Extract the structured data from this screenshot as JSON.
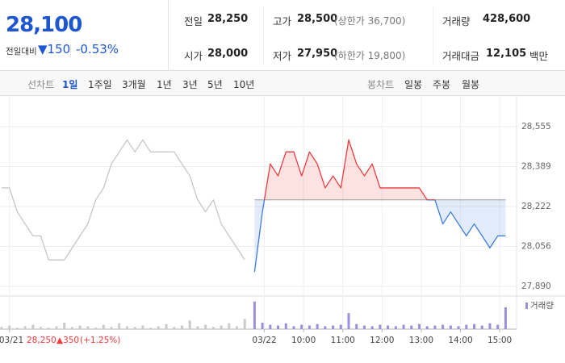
{
  "quote": {
    "price": "28,100",
    "change_label": "전일대비",
    "change": "▼150",
    "change_pct": "-0.53%"
  },
  "stats": [
    {
      "label": "전일"
    },
    {
      "label": "고가",
      "value": "28,500",
      "note": "(상한가 36,700)"
    },
    {
      "label": "거래량",
      "value": "428,600"
    },
    {
      "label": "시가",
      "value": "28,000"
    },
    {
      "label": "저가",
      "value": "27,950",
      "note": "(하한가 19,800)"
    },
    {
      "label": "거래대금",
      "value": "12,105",
      "unit": "백만"
    }
  ],
  "tabs": {
    "line_label": "선차트",
    "line": [
      "1일",
      "1주일",
      "3개월",
      "1년",
      "3년",
      "5년",
      "10년"
    ],
    "candle_label": "봉차트",
    "candle": [
      "일봉",
      "주봉",
      "월봉"
    ]
  },
  "chart_data": {
    "type": "line",
    "grid": true,
    "xlim": [
      2.26,
      15.43
    ],
    "xticks": [
      {
        "value": 2.5,
        "label": "03/21"
      },
      {
        "value": 9,
        "label": "03/22"
      },
      {
        "value": 10,
        "label": "10:00"
      },
      {
        "value": 11,
        "label": "11:00"
      },
      {
        "value": 12,
        "label": "12:00"
      },
      {
        "value": 13,
        "label": "13:00"
      },
      {
        "value": 14,
        "label": "14:00"
      },
      {
        "value": 15,
        "label": "15:00"
      }
    ],
    "ylim": [
      27856,
      28646
    ],
    "yticks": [
      {
        "value": 28555,
        "label": "28,555"
      },
      {
        "value": 28388.75,
        "label": "28,389"
      },
      {
        "value": 28222.5,
        "label": "28,222"
      },
      {
        "value": 28056.25,
        "label": "28,056"
      },
      {
        "value": 27890,
        "label": "27,890"
      }
    ],
    "y2lim": [
      0,
      40000
    ],
    "prev_close": {
      "value": 28250,
      "label": "28,250"
    },
    "up_color": "#f0393d",
    "down_color": "#3b7be0",
    "annotation": {
      "change": "▲350",
      "change_pct": "(+1.25%)"
    },
    "series": [
      {
        "color": "#c6c6c6",
        "x": [
          2.3,
          2.5,
          2.7,
          2.9,
          3.1,
          3.3,
          3.5,
          3.7,
          3.9,
          4.1,
          4.3,
          4.5,
          4.7,
          4.9,
          5.1,
          5.3,
          5.5,
          5.7,
          5.9,
          6.1,
          6.3,
          6.5,
          6.7,
          6.9,
          7.1,
          7.3,
          7.5,
          7.7,
          7.9,
          8.1,
          8.3,
          8.5
        ],
        "values": [
          28300,
          28300,
          28200,
          28150,
          28100,
          28100,
          28000,
          28000,
          28000,
          28050,
          28100,
          28150,
          28250,
          28300,
          28400,
          28450,
          28500,
          28450,
          28500,
          28450,
          28450,
          28450,
          28450,
          28400,
          28350,
          28250,
          28200,
          28250,
          28150,
          28100,
          28050,
          28000
        ]
      },
      {
        "color": "#f0393d",
        "x": [
          8.75,
          8.95,
          9.15,
          9.35,
          9.55,
          9.75,
          9.95,
          10.15,
          10.35,
          10.55,
          10.75,
          10.95,
          11.15,
          11.35,
          11.55,
          11.75,
          11.95,
          12.15,
          12.35,
          12.55,
          12.75,
          12.95,
          13.15,
          13.35,
          13.55,
          13.75,
          13.95,
          14.15,
          14.35,
          14.55,
          14.75,
          14.95,
          15.15
        ],
        "values": [
          27950,
          28200,
          28400,
          28350,
          28450,
          28450,
          28350,
          28450,
          28400,
          28300,
          28350,
          28300,
          28500,
          28400,
          28350,
          28400,
          28300,
          28300,
          28300,
          28300,
          28300,
          28300,
          28250,
          28250,
          28150,
          28200,
          28150,
          28100,
          28150,
          28100,
          28050,
          28100,
          28100
        ]
      },
      {
        "type": "bar",
        "axis": "y2",
        "color": "#cacaca",
        "x": [
          2.3,
          2.5,
          2.7,
          2.9,
          3.1,
          3.3,
          3.5,
          3.7,
          3.9,
          4.1,
          4.3,
          4.5,
          4.7,
          4.9,
          5.1,
          5.3,
          5.5,
          5.7,
          5.9,
          6.1,
          6.3,
          6.5,
          6.7,
          6.9,
          7.1,
          7.3,
          7.5,
          7.7,
          7.9,
          8.1,
          8.3,
          8.5
        ],
        "values": [
          3000,
          5000,
          2000,
          4000,
          6000,
          3000,
          2000,
          4000,
          9000,
          3000,
          5000,
          4000,
          2000,
          6000,
          3000,
          8000,
          4000,
          3000,
          5000,
          2000,
          4000,
          7000,
          3000,
          5000,
          12000,
          4000,
          6000,
          3000,
          5000,
          8000,
          4000,
          14000
        ]
      },
      {
        "type": "bar",
        "axis": "y2",
        "name": "거래량",
        "color": "#9a8fd8",
        "x": [
          8.75,
          8.95,
          9.15,
          9.35,
          9.55,
          9.75,
          9.95,
          10.15,
          10.35,
          10.55,
          10.75,
          10.95,
          11.15,
          11.35,
          11.55,
          11.75,
          11.95,
          12.15,
          12.35,
          12.55,
          12.75,
          12.95,
          13.15,
          13.35,
          13.55,
          13.75,
          13.95,
          14.15,
          14.35,
          14.55,
          14.75,
          14.95,
          15.15
        ],
        "values": [
          38000,
          9000,
          6000,
          5000,
          8000,
          4000,
          6000,
          5000,
          7000,
          4000,
          5000,
          6000,
          22000,
          7000,
          5000,
          4000,
          6000,
          5000,
          4000,
          6000,
          5000,
          7000,
          4000,
          5000,
          6000,
          5000,
          4000,
          6000,
          7000,
          5000,
          8000,
          6000,
          30000
        ]
      }
    ]
  }
}
